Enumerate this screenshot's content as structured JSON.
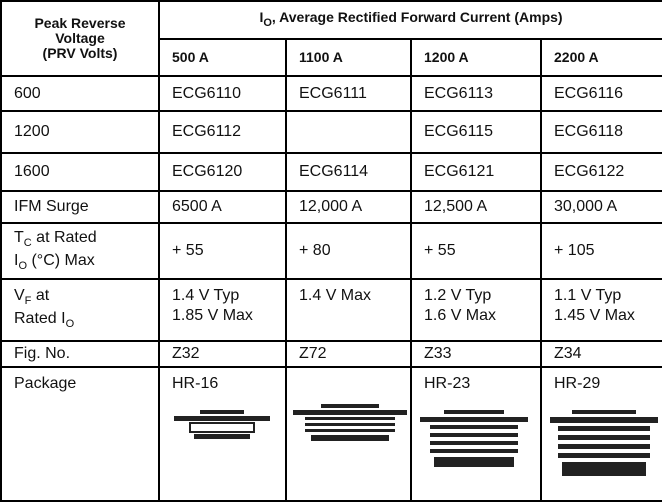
{
  "table": {
    "header": {
      "row_label": [
        "Peak Reverse",
        "Voltage",
        "(PRV Volts)"
      ],
      "group": [
        {
          "t": "I"
        },
        {
          "sub": "O"
        },
        {
          "t": ", Average Rectified Forward Current (Amps)"
        }
      ],
      "columns": [
        "500 A",
        "1100 A",
        "1200 A",
        "2200 A"
      ]
    },
    "rows": [
      {
        "label": "600",
        "cells": [
          "ECG6110",
          "ECG6111",
          "ECG6113",
          "ECG6116"
        ]
      },
      {
        "label": "1200",
        "cells": [
          "ECG6112",
          null,
          "ECG6115",
          "ECG6118"
        ]
      },
      {
        "label": "1600",
        "cells": [
          "ECG6120",
          "ECG6114",
          "ECG6121",
          "ECG6122"
        ]
      },
      {
        "label": "IFM Surge",
        "cells": [
          "6500 A",
          "12,000 A",
          "12,500 A",
          "30,000 A"
        ]
      },
      {
        "label": [
          [
            {
              "t": "T"
            },
            {
              "sub": "C"
            },
            {
              "t": " at Rated"
            }
          ],
          [
            {
              "t": "I"
            },
            {
              "sub": "O"
            },
            {
              "t": " (°C)  Max"
            }
          ]
        ],
        "cells": [
          "+ 55",
          "+ 80",
          "+ 55",
          "+ 105"
        ]
      },
      {
        "label": [
          [
            {
              "t": "V"
            },
            {
              "sub": "F"
            },
            {
              "t": " at"
            }
          ],
          [
            {
              "t": "Rated I"
            },
            {
              "sub": "O"
            }
          ]
        ],
        "cells": [
          [
            "1.4 V Typ",
            "1.85 V Max"
          ],
          [
            "1.4 V Max"
          ],
          [
            "1.2 V Typ",
            "1.6 V Max"
          ],
          [
            "1.1 V Typ",
            "1.45 V Max"
          ]
        ]
      },
      {
        "label": "Fig. No.",
        "cells": [
          "Z32",
          "Z72",
          "Z33",
          "Z34"
        ]
      },
      {
        "label": "Package",
        "cells": [
          "HR-16",
          null,
          "HR-23",
          "HR-29"
        ]
      }
    ]
  }
}
